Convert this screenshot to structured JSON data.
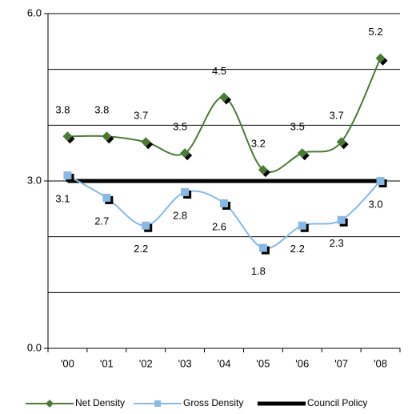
{
  "chart_data": {
    "type": "line",
    "categories": [
      "'00",
      "'01",
      "'02",
      "'03",
      "'04",
      "'05",
      "'06",
      "'07",
      "'08"
    ],
    "series": [
      {
        "name": "Net Density",
        "color": "#4a7b34",
        "marker": "diamond",
        "values": [
          3.8,
          3.8,
          3.7,
          3.5,
          4.5,
          3.2,
          3.5,
          3.7,
          5.2
        ],
        "label_position": "above"
      },
      {
        "name": "Gross Density",
        "color": "#87b9e6",
        "marker": "square",
        "values": [
          3.1,
          2.7,
          2.2,
          2.8,
          2.6,
          1.8,
          2.2,
          2.3,
          3.0
        ],
        "value_labels": [
          "3.1",
          "2.7",
          "2.2",
          "2.8",
          "2.6",
          "1.8",
          "2.2",
          "2.3",
          "3.0"
        ],
        "label_position": "below"
      },
      {
        "name": "Council Policy",
        "color": "#000000",
        "marker": "none",
        "values": [
          3,
          3,
          3,
          3,
          3,
          3,
          3,
          3,
          3
        ]
      }
    ],
    "ylim": [
      0,
      6
    ],
    "yticks": [
      {
        "value": 0,
        "label": "0.0"
      },
      {
        "value": 3,
        "label": "3.0"
      },
      {
        "value": 6,
        "label": "6.0"
      }
    ],
    "minor_yticks": [
      1,
      2,
      4,
      5
    ],
    "grid": true,
    "legend": "bottom"
  }
}
